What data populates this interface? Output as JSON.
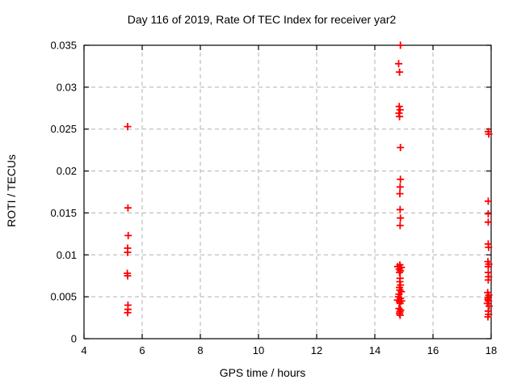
{
  "chart_data": {
    "type": "scatter",
    "title": "Day 116 of 2019, Rate Of TEC Index for receiver yar2",
    "xlabel": "GPS time / hours",
    "ylabel": "ROTI / TECUs",
    "xlim": [
      4,
      18
    ],
    "ylim": [
      0,
      0.035
    ],
    "xticks": [
      4,
      6,
      8,
      10,
      12,
      14,
      16,
      18
    ],
    "xtick_labels": [
      "4",
      "6",
      "8",
      "10",
      "12",
      "14",
      "16",
      "18"
    ],
    "yticks": [
      0,
      0.005,
      0.01,
      0.015,
      0.02,
      0.025,
      0.03,
      0.035
    ],
    "ytick_labels": [
      "0",
      "0.005",
      "0.01",
      "0.015",
      "0.02",
      "0.025",
      "0.03",
      "0.035"
    ],
    "grid": true,
    "legend_position": "none",
    "marker": "plus",
    "marker_color": "#ff0000",
    "grid_color": "#b0b0b0",
    "axis_color": "#000000",
    "series": [
      {
        "name": "ROTI",
        "points": [
          [
            5.5,
            0.0253
          ],
          [
            5.51,
            0.0156
          ],
          [
            5.52,
            0.0123
          ],
          [
            5.5,
            0.0108
          ],
          [
            5.5,
            0.0103
          ],
          [
            5.49,
            0.0078
          ],
          [
            5.5,
            0.0075
          ],
          [
            5.51,
            0.004
          ],
          [
            5.51,
            0.0035
          ],
          [
            5.5,
            0.0031
          ],
          [
            14.88,
            0.035
          ],
          [
            14.82,
            0.0328
          ],
          [
            14.85,
            0.0318
          ],
          [
            14.84,
            0.0277
          ],
          [
            14.87,
            0.0273
          ],
          [
            14.83,
            0.0269
          ],
          [
            14.85,
            0.0265
          ],
          [
            14.88,
            0.0228
          ],
          [
            14.88,
            0.019
          ],
          [
            14.87,
            0.0181
          ],
          [
            14.86,
            0.0173
          ],
          [
            14.87,
            0.0154
          ],
          [
            14.88,
            0.0144
          ],
          [
            14.87,
            0.0135
          ],
          [
            14.86,
            0.0088
          ],
          [
            14.79,
            0.0086
          ],
          [
            14.91,
            0.0085
          ],
          [
            14.84,
            0.0083
          ],
          [
            14.88,
            0.0081
          ],
          [
            14.85,
            0.0079
          ],
          [
            14.87,
            0.0072
          ],
          [
            14.86,
            0.0068
          ],
          [
            14.88,
            0.0064
          ],
          [
            14.85,
            0.0061
          ],
          [
            14.86,
            0.0058
          ],
          [
            14.91,
            0.0056
          ],
          [
            14.83,
            0.0053
          ],
          [
            14.81,
            0.005
          ],
          [
            14.88,
            0.0048
          ],
          [
            14.78,
            0.0046
          ],
          [
            14.92,
            0.0045
          ],
          [
            14.85,
            0.0044
          ],
          [
            14.87,
            0.0042
          ],
          [
            14.83,
            0.0036
          ],
          [
            14.89,
            0.0034
          ],
          [
            14.86,
            0.0032
          ],
          [
            14.85,
            0.003
          ],
          [
            14.87,
            0.0028
          ],
          [
            17.9,
            0.0247
          ],
          [
            17.92,
            0.0244
          ],
          [
            17.9,
            0.0164
          ],
          [
            17.9,
            0.0149
          ],
          [
            17.9,
            0.0139
          ],
          [
            17.9,
            0.0113
          ],
          [
            17.91,
            0.0109
          ],
          [
            17.89,
            0.0092
          ],
          [
            17.92,
            0.0089
          ],
          [
            17.9,
            0.0086
          ],
          [
            17.9,
            0.0079
          ],
          [
            17.91,
            0.0074
          ],
          [
            17.9,
            0.007
          ],
          [
            17.88,
            0.0055
          ],
          [
            17.92,
            0.0052
          ],
          [
            17.9,
            0.0049
          ],
          [
            17.89,
            0.0047
          ],
          [
            17.91,
            0.0045
          ],
          [
            17.87,
            0.0042
          ],
          [
            17.93,
            0.0039
          ],
          [
            17.9,
            0.0033
          ],
          [
            17.91,
            0.0029
          ],
          [
            17.89,
            0.0026
          ]
        ]
      }
    ]
  }
}
